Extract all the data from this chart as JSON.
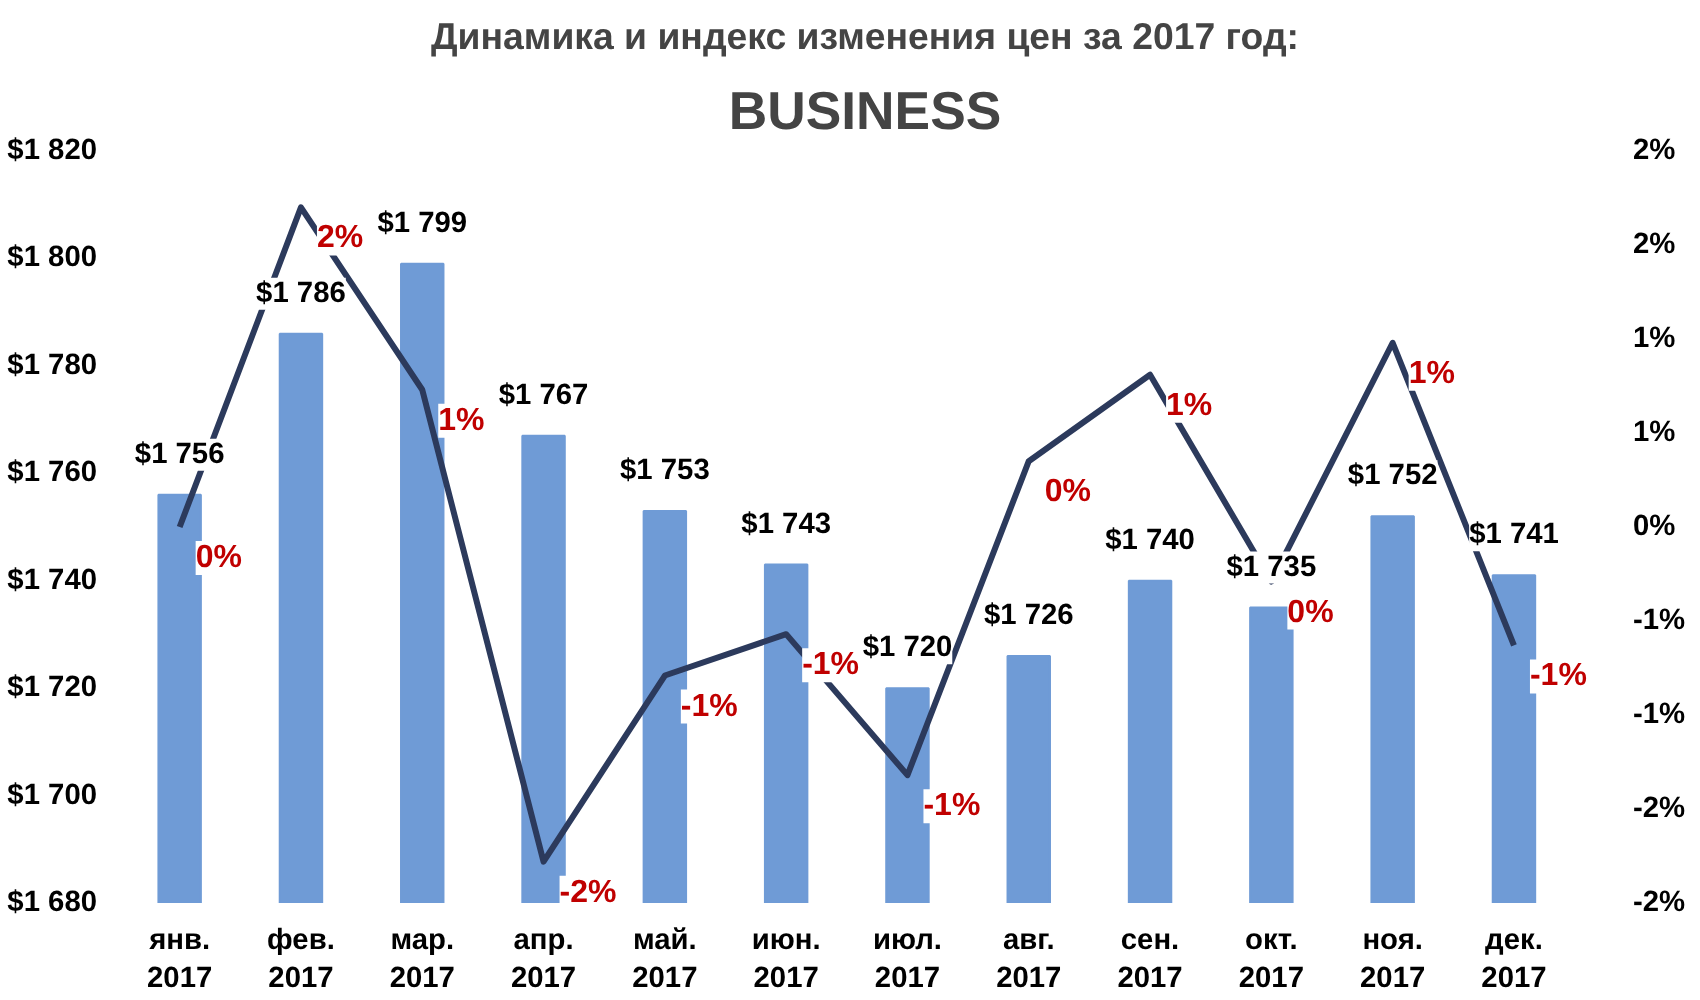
{
  "chart_data": {
    "type": "bar",
    "title": "Динамика и индекс изменения цен за 2017 год:",
    "subtitle": "BUSINESS",
    "categories": [
      "янв. 2017",
      "фев. 2017",
      "мар. 2017",
      "апр. 2017",
      "май. 2017",
      "июн. 2017",
      "июл. 2017",
      "авг. 2017",
      "сен. 2017",
      "окт. 2017",
      "ноя. 2017",
      "дек. 2017"
    ],
    "series": [
      {
        "color": "#6f9bd6",
        "values": [
          1756,
          1786,
          1799,
          1767,
          1753,
          1743,
          1720,
          1726,
          1740,
          1735,
          1752,
          1741
        ],
        "value_labels": [
          "$1 756",
          "$1 786",
          "$1 799",
          "$1 767",
          "$1 753",
          "$1 743",
          "$1 720",
          "$1 726",
          "$1 740",
          "$1 735",
          "$1 752",
          "$1 741"
        ]
      },
      {
        "type": "line",
        "axis": "y2",
        "color": "#2c3a5c",
        "values": [
          0.0,
          1.7,
          0.73,
          -1.78,
          -0.79,
          -0.57,
          -1.32,
          0.35,
          0.81,
          -0.29,
          0.98,
          -0.63
        ],
        "value_labels": [
          "0%",
          "2%",
          "1%",
          "-2%",
          "-1%",
          "-1%",
          "-1%",
          "0%",
          "1%",
          "0%",
          "1%",
          "-1%"
        ]
      }
    ],
    "ylim": [
      1680,
      1820
    ],
    "yticks": [
      {
        "value": 1680,
        "label": "$1 680"
      },
      {
        "value": 1700,
        "label": "$1 700"
      },
      {
        "value": 1720,
        "label": "$1 720"
      },
      {
        "value": 1740,
        "label": "$1 740"
      },
      {
        "value": 1760,
        "label": "$1 760"
      },
      {
        "value": 1780,
        "label": "$1 780"
      },
      {
        "value": 1800,
        "label": "$1 800"
      },
      {
        "value": 1820,
        "label": "$1 820"
      }
    ],
    "y2lim": [
      -2.0,
      2.0
    ],
    "y2ticks": [
      {
        "value": -2.0,
        "label": "-2%"
      },
      {
        "value": -1.5,
        "label": "-2%"
      },
      {
        "value": -1.0,
        "label": "-1%"
      },
      {
        "value": -0.5,
        "label": "-1%"
      },
      {
        "value": 0,
        "label": "0%"
      },
      {
        "value": 0.5,
        "label": "1%"
      },
      {
        "value": 1.0,
        "label": "1%"
      },
      {
        "value": 1.5,
        "label": "2%"
      },
      {
        "value": 2.0,
        "label": "2%"
      }
    ],
    "grid": false,
    "marker": "none",
    "line_style": "solid"
  }
}
